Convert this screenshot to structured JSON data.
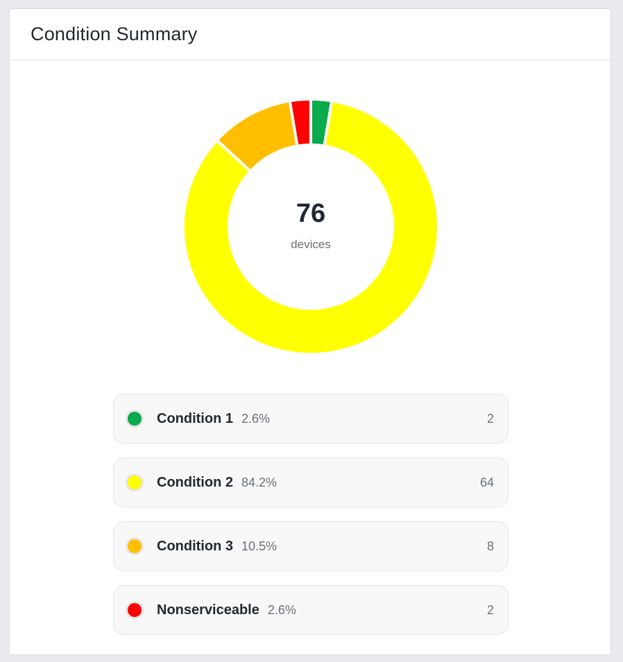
{
  "card": {
    "title": "Condition Summary"
  },
  "center": {
    "total": "76",
    "unit": "devices"
  },
  "chart_data": {
    "type": "pie",
    "variant": "donut",
    "start_angle_deg": 0,
    "categories": [
      "Condition 1",
      "Condition 2",
      "Condition 3",
      "Nonserviceable"
    ],
    "values": [
      2,
      64,
      8,
      2
    ],
    "colors": [
      "#0aab4c",
      "#ffff00",
      "#ffbf00",
      "#ff0000"
    ]
  },
  "legend": [
    {
      "name": "Condition 1",
      "percent": "2.6%",
      "count": "2",
      "color": "#0aab4c"
    },
    {
      "name": "Condition 2",
      "percent": "84.2%",
      "count": "64",
      "color": "#ffff00"
    },
    {
      "name": "Condition 3",
      "percent": "10.5%",
      "count": "8",
      "color": "#ffbf00"
    },
    {
      "name": "Nonserviceable",
      "percent": "2.6%",
      "count": "2",
      "color": "#ff0000"
    }
  ]
}
